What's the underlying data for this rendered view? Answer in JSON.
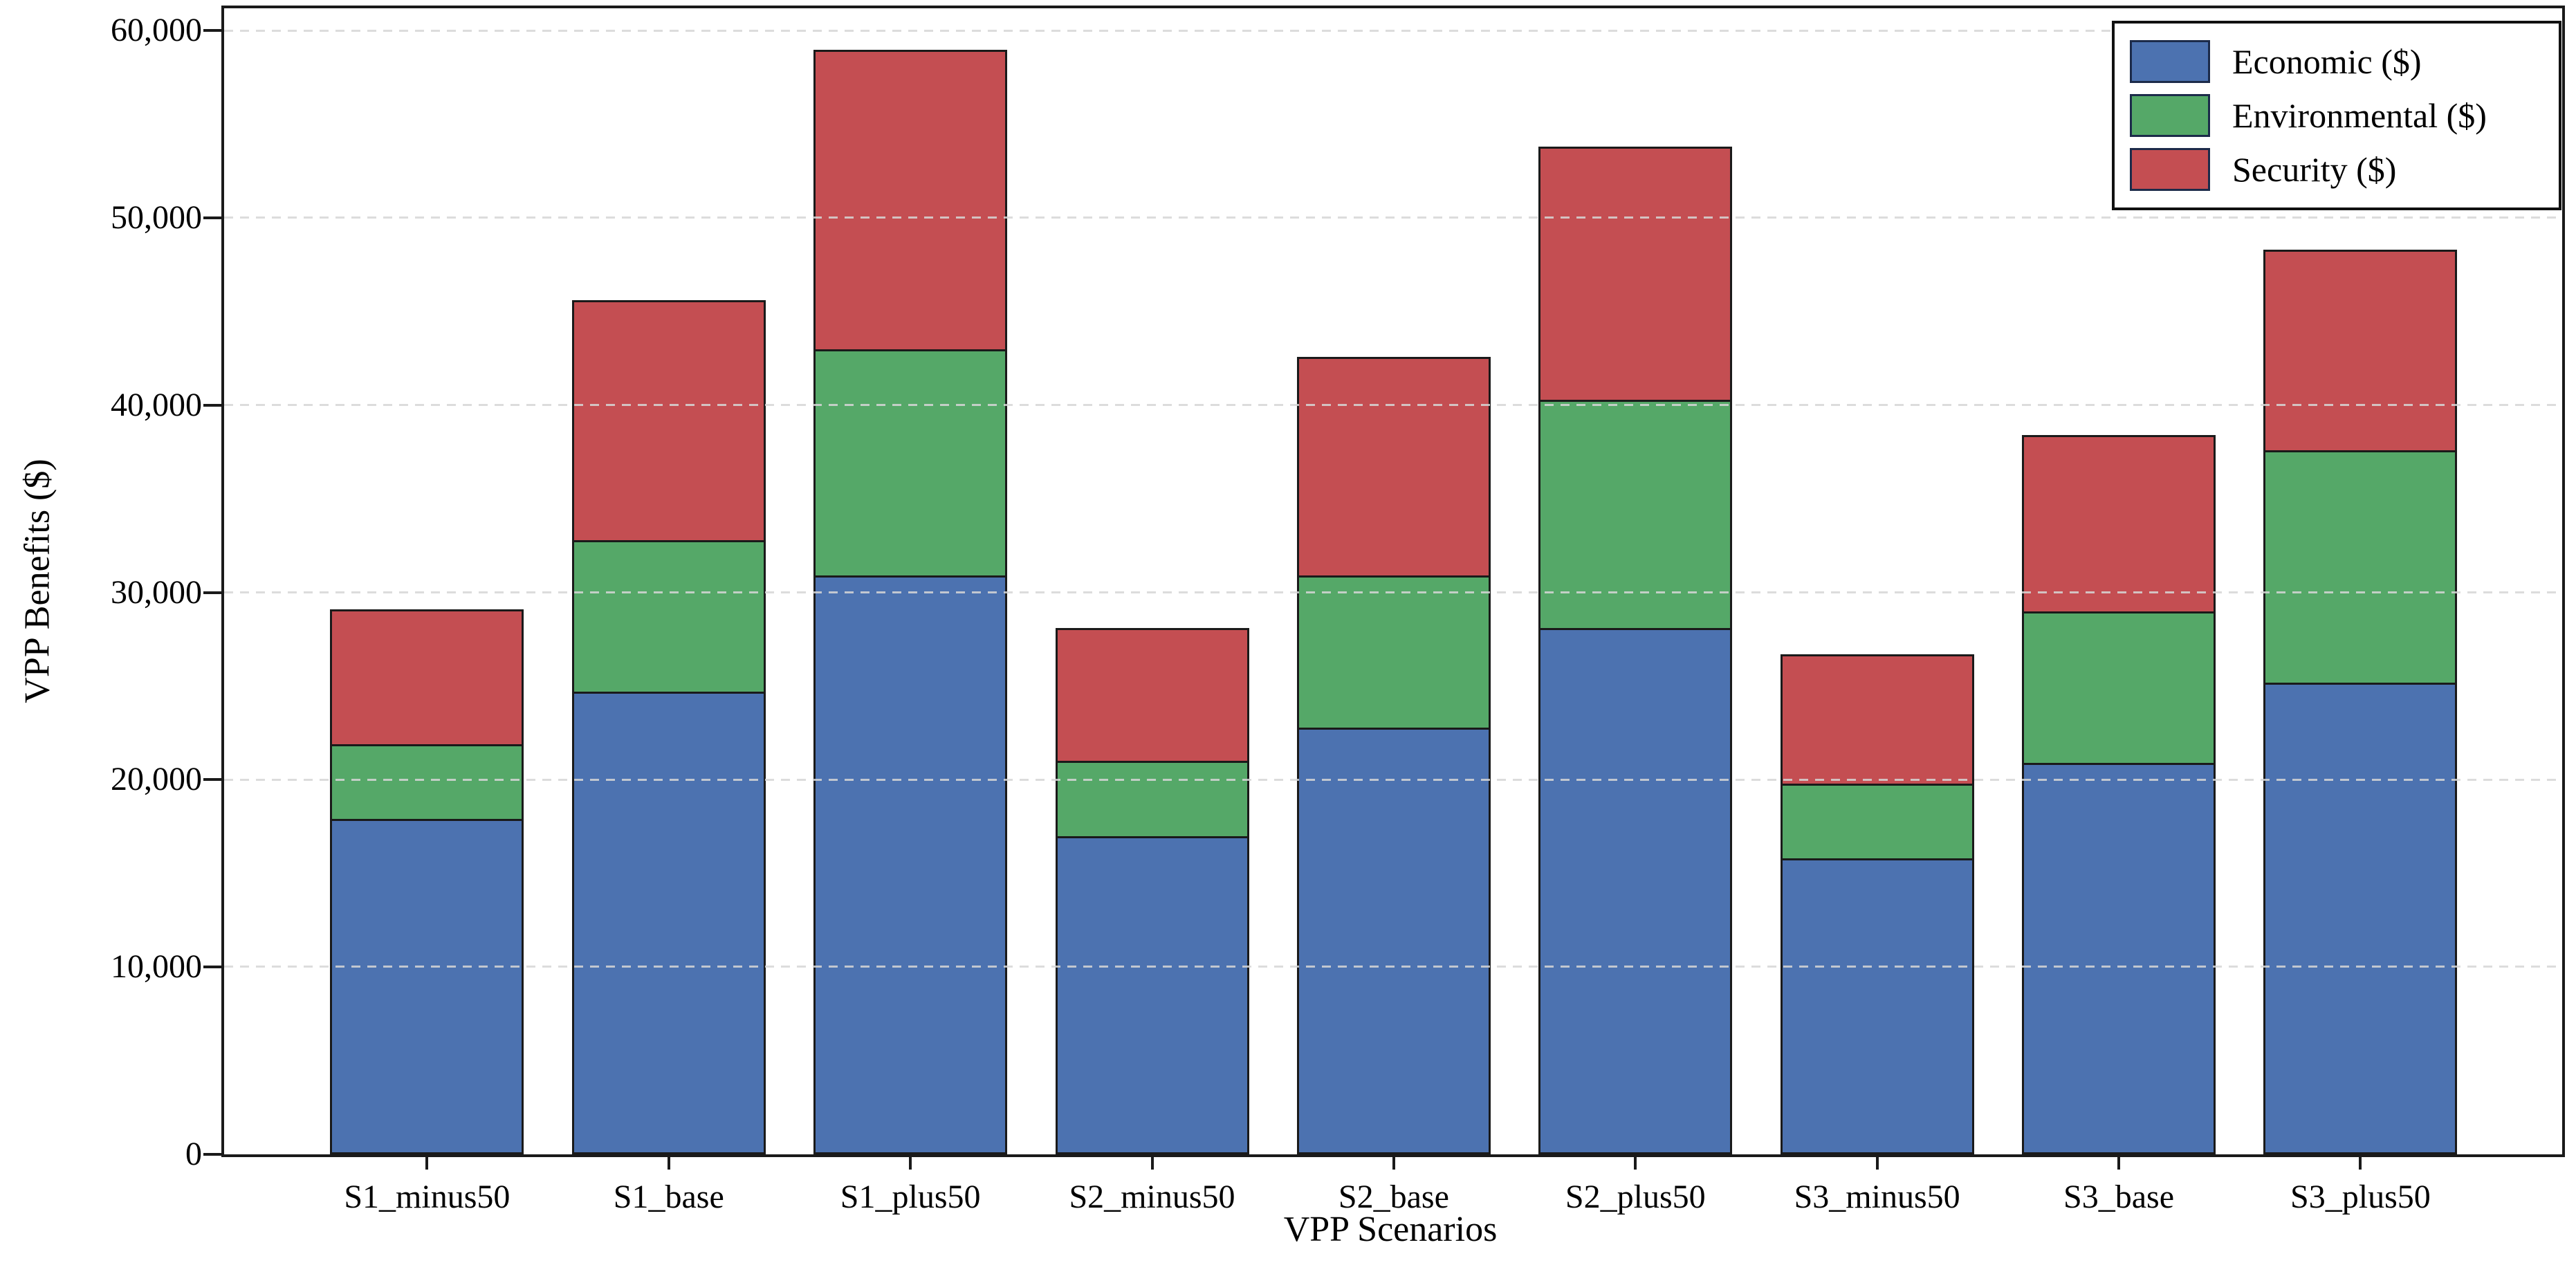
{
  "chart_data": {
    "type": "bar",
    "stacked": true,
    "title": "",
    "xlabel": "VPP Scenarios",
    "ylabel": "VPP Benefits ($)",
    "categories": [
      "S1_minus50",
      "S1_base",
      "S1_plus50",
      "S2_minus50",
      "S2_base",
      "S2_plus50",
      "S3_minus50",
      "S3_base",
      "S3_plus50"
    ],
    "series": [
      {
        "name": "Economic ($)",
        "color": "#4C72B0",
        "values": [
          17900,
          24700,
          30900,
          17000,
          22800,
          28100,
          15800,
          20900,
          25200
        ]
      },
      {
        "name": "Environmental ($)",
        "color": "#55A868",
        "values": [
          4000,
          8100,
          12100,
          4000,
          8100,
          12200,
          4000,
          8100,
          12400
        ]
      },
      {
        "name": "Security ($)",
        "color": "#C44E52",
        "values": [
          7200,
          12800,
          16000,
          7100,
          11700,
          13500,
          6900,
          9400,
          10700
        ]
      }
    ],
    "stack_totals": [
      29100,
      45600,
      59000,
      28100,
      42600,
      53800,
      26700,
      38400,
      48300
    ],
    "ylim": [
      0,
      61200
    ],
    "yticks": [
      0,
      10000,
      20000,
      30000,
      40000,
      50000,
      60000
    ],
    "ytick_labels": [
      "0",
      "10,000",
      "20,000",
      "30,000",
      "40,000",
      "50,000",
      "60,000"
    ],
    "grid": "horizontal-dashed-light-gray",
    "legend_position": "upper-right",
    "bar_edge_color": "#1a1a1a",
    "grid_color": "#d6d6d6"
  }
}
